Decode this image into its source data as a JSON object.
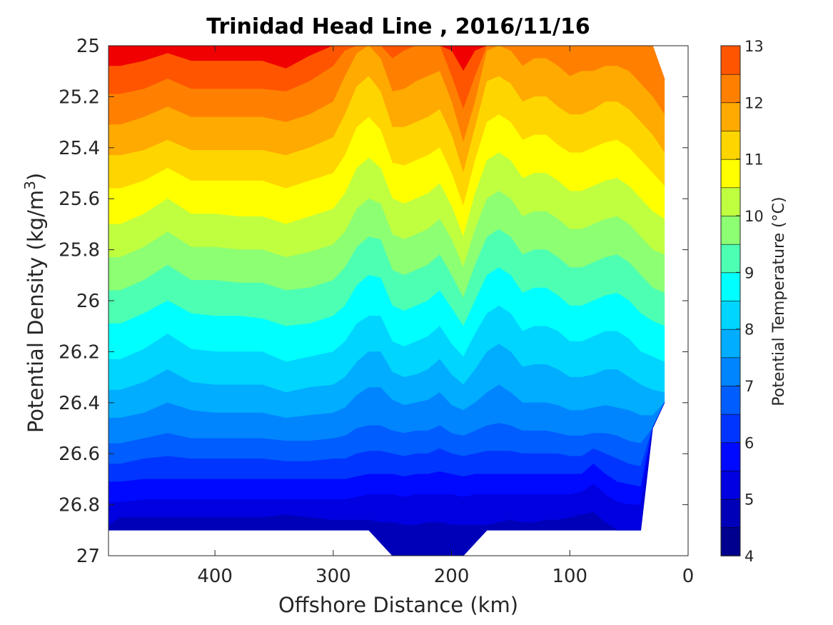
{
  "chart_data": {
    "type": "contour",
    "title": "Trinidad Head Line , 2016/11/16",
    "xlabel": "Offshore Distance (km)",
    "ylabel": "Potential Density (kg/m",
    "ylabel_superscript": "3",
    "ylabel_close": ")",
    "colorbar_label": "Potential Temperature (°C)",
    "xlim": [
      490,
      0
    ],
    "x_direction": "reversed",
    "ylim": [
      25,
      27
    ],
    "y_direction": "reversed",
    "x_ticks": [
      400,
      300,
      200,
      100,
      0
    ],
    "x_tick_labels": [
      "400",
      "300",
      "200",
      "100",
      "0"
    ],
    "y_ticks": [
      25,
      25.2,
      25.4,
      25.6,
      25.8,
      26,
      26.2,
      26.4,
      26.6,
      26.8,
      27
    ],
    "y_tick_labels": [
      "25",
      "25.2",
      "25.4",
      "25.6",
      "25.8",
      "26",
      "26.2",
      "26.4",
      "26.6",
      "26.8",
      "27"
    ],
    "colorbar_ticks": [
      4,
      5,
      6,
      7,
      8,
      9,
      10,
      11,
      12,
      13
    ],
    "colorbar_tick_labels": [
      "4",
      "5",
      "6",
      "7",
      "8",
      "9",
      "10",
      "11",
      "12",
      "13"
    ],
    "contour_levels": [
      4,
      4.5,
      5,
      5.5,
      6,
      6.5,
      7,
      7.5,
      8,
      8.5,
      9,
      9.5,
      10,
      10.5,
      11,
      11.5,
      12,
      12.5,
      13
    ],
    "level_colors": [
      "#00008f",
      "#0000b8",
      "#0000e0",
      "#0009ff",
      "#0035ff",
      "#005dff",
      "#0085ff",
      "#00adff",
      "#00d5ff",
      "#00ffff",
      "#4dffb3",
      "#8cff73",
      "#bfff40",
      "#ffff00",
      "#ffd500",
      "#ffaa00",
      "#ff8000",
      "#ff5500",
      "#ff2b00",
      "#f00000",
      "#b20000"
    ],
    "section_x_km": [
      20,
      30,
      40,
      50,
      60,
      70,
      80,
      90,
      100,
      110,
      120,
      130,
      140,
      150,
      160,
      170,
      180,
      190,
      200,
      210,
      220,
      230,
      240,
      250,
      260,
      270,
      280,
      290,
      300,
      320,
      340,
      360,
      380,
      400,
      420,
      440,
      460,
      480,
      490
    ],
    "isotherm_density": {
      "12.5": [
        25.0,
        25.0,
        25.0,
        25.0,
        25.0,
        25.0,
        25.0,
        25.0,
        25.0,
        25.0,
        25.0,
        25.0,
        25.0,
        25.0,
        25.0,
        25.0,
        25.02,
        25.1,
        25.02,
        25.0,
        25.0,
        25.0,
        25.0,
        25.0,
        25.0,
        25.0,
        25.0,
        25.0,
        25.0,
        25.04,
        25.09,
        25.06,
        25.06,
        25.06,
        25.06,
        25.03,
        25.06,
        25.08,
        25.08
      ],
      "12": [
        25.13,
        25.0,
        25.0,
        25.0,
        25.0,
        25.0,
        25.0,
        25.0,
        25.0,
        25.0,
        25.0,
        25.0,
        25.0,
        25.0,
        25.0,
        25.0,
        25.12,
        25.25,
        25.12,
        25.0,
        25.0,
        25.0,
        25.02,
        25.05,
        25.0,
        25.0,
        25.0,
        25.02,
        25.08,
        25.14,
        25.18,
        25.17,
        25.17,
        25.17,
        25.17,
        25.13,
        25.17,
        25.19,
        25.19
      ],
      "11.5": [
        25.27,
        25.2,
        25.15,
        25.1,
        25.08,
        25.08,
        25.1,
        25.1,
        25.12,
        25.08,
        25.05,
        25.05,
        25.08,
        25.02,
        25.0,
        25.02,
        25.22,
        25.38,
        25.22,
        25.1,
        25.12,
        25.14,
        25.17,
        25.18,
        25.05,
        25.0,
        25.03,
        25.12,
        25.22,
        25.27,
        25.3,
        25.28,
        25.28,
        25.28,
        25.28,
        25.24,
        25.28,
        25.31,
        25.31
      ],
      "11": [
        25.42,
        25.35,
        25.3,
        25.25,
        25.22,
        25.22,
        25.25,
        25.27,
        25.27,
        25.24,
        25.2,
        25.2,
        25.22,
        25.15,
        25.12,
        25.14,
        25.32,
        25.5,
        25.35,
        25.25,
        25.28,
        25.3,
        25.32,
        25.32,
        25.18,
        25.12,
        25.16,
        25.27,
        25.36,
        25.4,
        25.43,
        25.41,
        25.41,
        25.41,
        25.41,
        25.37,
        25.41,
        25.43,
        25.43
      ],
      "10.5": [
        25.55,
        25.5,
        25.45,
        25.4,
        25.37,
        25.38,
        25.4,
        25.42,
        25.42,
        25.39,
        25.35,
        25.35,
        25.37,
        25.3,
        25.27,
        25.3,
        25.45,
        25.63,
        25.5,
        25.4,
        25.43,
        25.45,
        25.47,
        25.46,
        25.33,
        25.28,
        25.32,
        25.43,
        25.5,
        25.53,
        25.56,
        25.53,
        25.53,
        25.53,
        25.53,
        25.48,
        25.53,
        25.56,
        25.56
      ],
      "10": [
        25.68,
        25.65,
        25.6,
        25.55,
        25.52,
        25.53,
        25.55,
        25.57,
        25.57,
        25.53,
        25.5,
        25.5,
        25.52,
        25.45,
        25.42,
        25.45,
        25.58,
        25.75,
        25.63,
        25.54,
        25.58,
        25.6,
        25.62,
        25.6,
        25.48,
        25.44,
        25.48,
        25.58,
        25.64,
        25.67,
        25.7,
        25.67,
        25.67,
        25.66,
        25.66,
        25.6,
        25.66,
        25.7,
        25.7
      ],
      "9.5": [
        25.82,
        25.8,
        25.75,
        25.7,
        25.67,
        25.68,
        25.7,
        25.72,
        25.72,
        25.68,
        25.65,
        25.65,
        25.67,
        25.6,
        25.57,
        25.6,
        25.72,
        25.87,
        25.76,
        25.68,
        25.72,
        25.74,
        25.76,
        25.74,
        25.62,
        25.6,
        25.64,
        25.73,
        25.78,
        25.81,
        25.83,
        25.8,
        25.8,
        25.79,
        25.79,
        25.73,
        25.79,
        25.83,
        25.83
      ],
      "9": [
        25.97,
        25.95,
        25.9,
        25.85,
        25.82,
        25.83,
        25.85,
        25.87,
        25.87,
        25.83,
        25.8,
        25.8,
        25.82,
        25.75,
        25.72,
        25.75,
        25.86,
        25.99,
        25.9,
        25.82,
        25.86,
        25.88,
        25.9,
        25.88,
        25.76,
        25.75,
        25.79,
        25.87,
        25.92,
        25.95,
        25.96,
        25.93,
        25.93,
        25.92,
        25.92,
        25.86,
        25.92,
        25.96,
        25.96
      ],
      "8.5": [
        26.1,
        26.08,
        26.05,
        26.0,
        25.97,
        25.98,
        26.0,
        26.02,
        26.02,
        25.98,
        25.95,
        25.95,
        25.97,
        25.9,
        25.87,
        25.9,
        26.0,
        26.1,
        26.03,
        25.96,
        26.0,
        26.02,
        26.04,
        26.02,
        25.91,
        25.9,
        25.94,
        26.02,
        26.06,
        26.09,
        26.1,
        26.07,
        26.06,
        26.06,
        26.05,
        26.0,
        26.05,
        26.09,
        26.09
      ],
      "8": [
        26.24,
        26.22,
        26.2,
        26.15,
        26.12,
        26.12,
        26.14,
        26.16,
        26.16,
        26.12,
        26.1,
        26.1,
        26.12,
        26.05,
        26.02,
        26.05,
        26.13,
        26.22,
        26.17,
        26.1,
        26.14,
        26.16,
        26.18,
        26.16,
        26.06,
        26.06,
        26.09,
        26.16,
        26.2,
        26.22,
        26.24,
        26.2,
        26.2,
        26.2,
        26.19,
        26.13,
        26.19,
        26.23,
        26.23
      ],
      "7.5": [
        26.36,
        26.35,
        26.33,
        26.3,
        26.27,
        26.27,
        26.29,
        26.3,
        26.3,
        26.27,
        26.25,
        26.25,
        26.26,
        26.2,
        26.17,
        26.2,
        26.27,
        26.33,
        26.29,
        26.23,
        26.27,
        26.29,
        26.3,
        26.28,
        26.2,
        26.2,
        26.24,
        26.3,
        26.33,
        26.34,
        26.36,
        26.33,
        26.33,
        26.33,
        26.32,
        26.27,
        26.32,
        26.35,
        26.35
      ],
      "7": [
        26.43,
        26.45,
        26.45,
        26.43,
        26.42,
        26.41,
        26.42,
        26.43,
        26.43,
        26.41,
        26.4,
        26.4,
        26.4,
        26.36,
        26.33,
        26.36,
        26.4,
        26.43,
        26.41,
        26.36,
        26.39,
        26.4,
        26.41,
        26.39,
        26.34,
        26.34,
        26.37,
        26.42,
        26.44,
        26.45,
        26.46,
        26.44,
        26.44,
        26.44,
        26.43,
        26.4,
        26.44,
        26.46,
        26.46
      ],
      "6.5": [
        26.5,
        26.56,
        26.56,
        26.55,
        26.53,
        26.52,
        26.52,
        26.53,
        26.53,
        26.52,
        26.51,
        26.51,
        26.51,
        26.49,
        26.48,
        26.49,
        26.51,
        26.53,
        26.52,
        26.49,
        26.51,
        26.51,
        26.52,
        26.51,
        26.49,
        26.49,
        26.5,
        26.53,
        26.54,
        26.55,
        26.55,
        26.54,
        26.54,
        26.54,
        26.54,
        26.52,
        26.54,
        26.56,
        26.56
      ],
      "6": [
        26.5,
        26.65,
        26.65,
        26.64,
        26.62,
        26.6,
        26.58,
        26.61,
        26.61,
        26.6,
        26.6,
        26.6,
        26.6,
        26.59,
        26.59,
        26.59,
        26.6,
        26.61,
        26.6,
        26.58,
        26.6,
        26.6,
        26.61,
        26.6,
        26.59,
        26.59,
        26.6,
        26.62,
        26.62,
        26.63,
        26.63,
        26.62,
        26.62,
        26.62,
        26.62,
        26.61,
        26.62,
        26.64,
        26.64
      ],
      "5.5": [
        26.5,
        26.73,
        26.73,
        26.72,
        26.71,
        26.68,
        26.64,
        26.68,
        26.68,
        26.68,
        26.68,
        26.68,
        26.68,
        26.68,
        26.68,
        26.68,
        26.68,
        26.69,
        26.68,
        26.67,
        26.68,
        26.68,
        26.69,
        26.68,
        26.68,
        26.68,
        26.69,
        26.7,
        26.7,
        26.7,
        26.7,
        26.7,
        26.7,
        26.7,
        26.7,
        26.7,
        26.7,
        26.71,
        26.71
      ],
      "5": [
        26.5,
        26.8,
        26.8,
        26.8,
        26.79,
        26.76,
        26.72,
        26.75,
        26.76,
        26.76,
        26.76,
        26.76,
        26.76,
        26.76,
        26.76,
        26.76,
        26.76,
        26.77,
        26.76,
        26.76,
        26.76,
        26.76,
        26.77,
        26.76,
        26.76,
        26.76,
        26.77,
        26.78,
        26.78,
        26.78,
        26.78,
        26.78,
        26.78,
        26.78,
        26.78,
        26.78,
        26.78,
        26.79,
        26.79
      ],
      "4.5": [
        26.5,
        26.9,
        26.9,
        26.9,
        26.9,
        26.87,
        26.83,
        26.84,
        26.85,
        26.86,
        26.86,
        26.87,
        26.87,
        26.86,
        26.87,
        26.88,
        26.88,
        26.88,
        26.88,
        26.87,
        26.87,
        26.88,
        26.88,
        26.87,
        26.87,
        26.86,
        26.86,
        26.86,
        26.86,
        26.85,
        26.84,
        26.85,
        26.85,
        26.85,
        26.85,
        26.85,
        26.85,
        26.85,
        26.88
      ]
    },
    "section_bottom_density": [
      26.4,
      26.5,
      26.9,
      26.9,
      26.9,
      26.9,
      26.9,
      26.9,
      26.9,
      26.9,
      26.9,
      26.9,
      26.9,
      26.9,
      26.9,
      26.9,
      26.95,
      27.0,
      27.0,
      27.0,
      27.0,
      27.0,
      27.0,
      27.0,
      26.95,
      26.9,
      26.9,
      26.9,
      26.9,
      26.9,
      26.9,
      26.9,
      26.9,
      26.9,
      26.9,
      26.9,
      26.9,
      26.9,
      26.9
    ],
    "section_top_density": [
      25.13,
      25.0,
      25.0,
      25.0,
      25.0,
      25.0,
      25.0,
      25.0,
      25.0,
      25.0,
      25.0,
      25.0,
      25.0,
      25.0,
      25.0,
      25.0,
      25.0,
      25.0,
      25.0,
      25.0,
      25.0,
      25.0,
      25.0,
      25.0,
      25.0,
      25.0,
      25.0,
      25.0,
      25.0,
      25.0,
      25.0,
      25.0,
      25.0,
      25.0,
      25.0,
      25.0,
      25.0,
      25.0,
      25.0
    ]
  }
}
